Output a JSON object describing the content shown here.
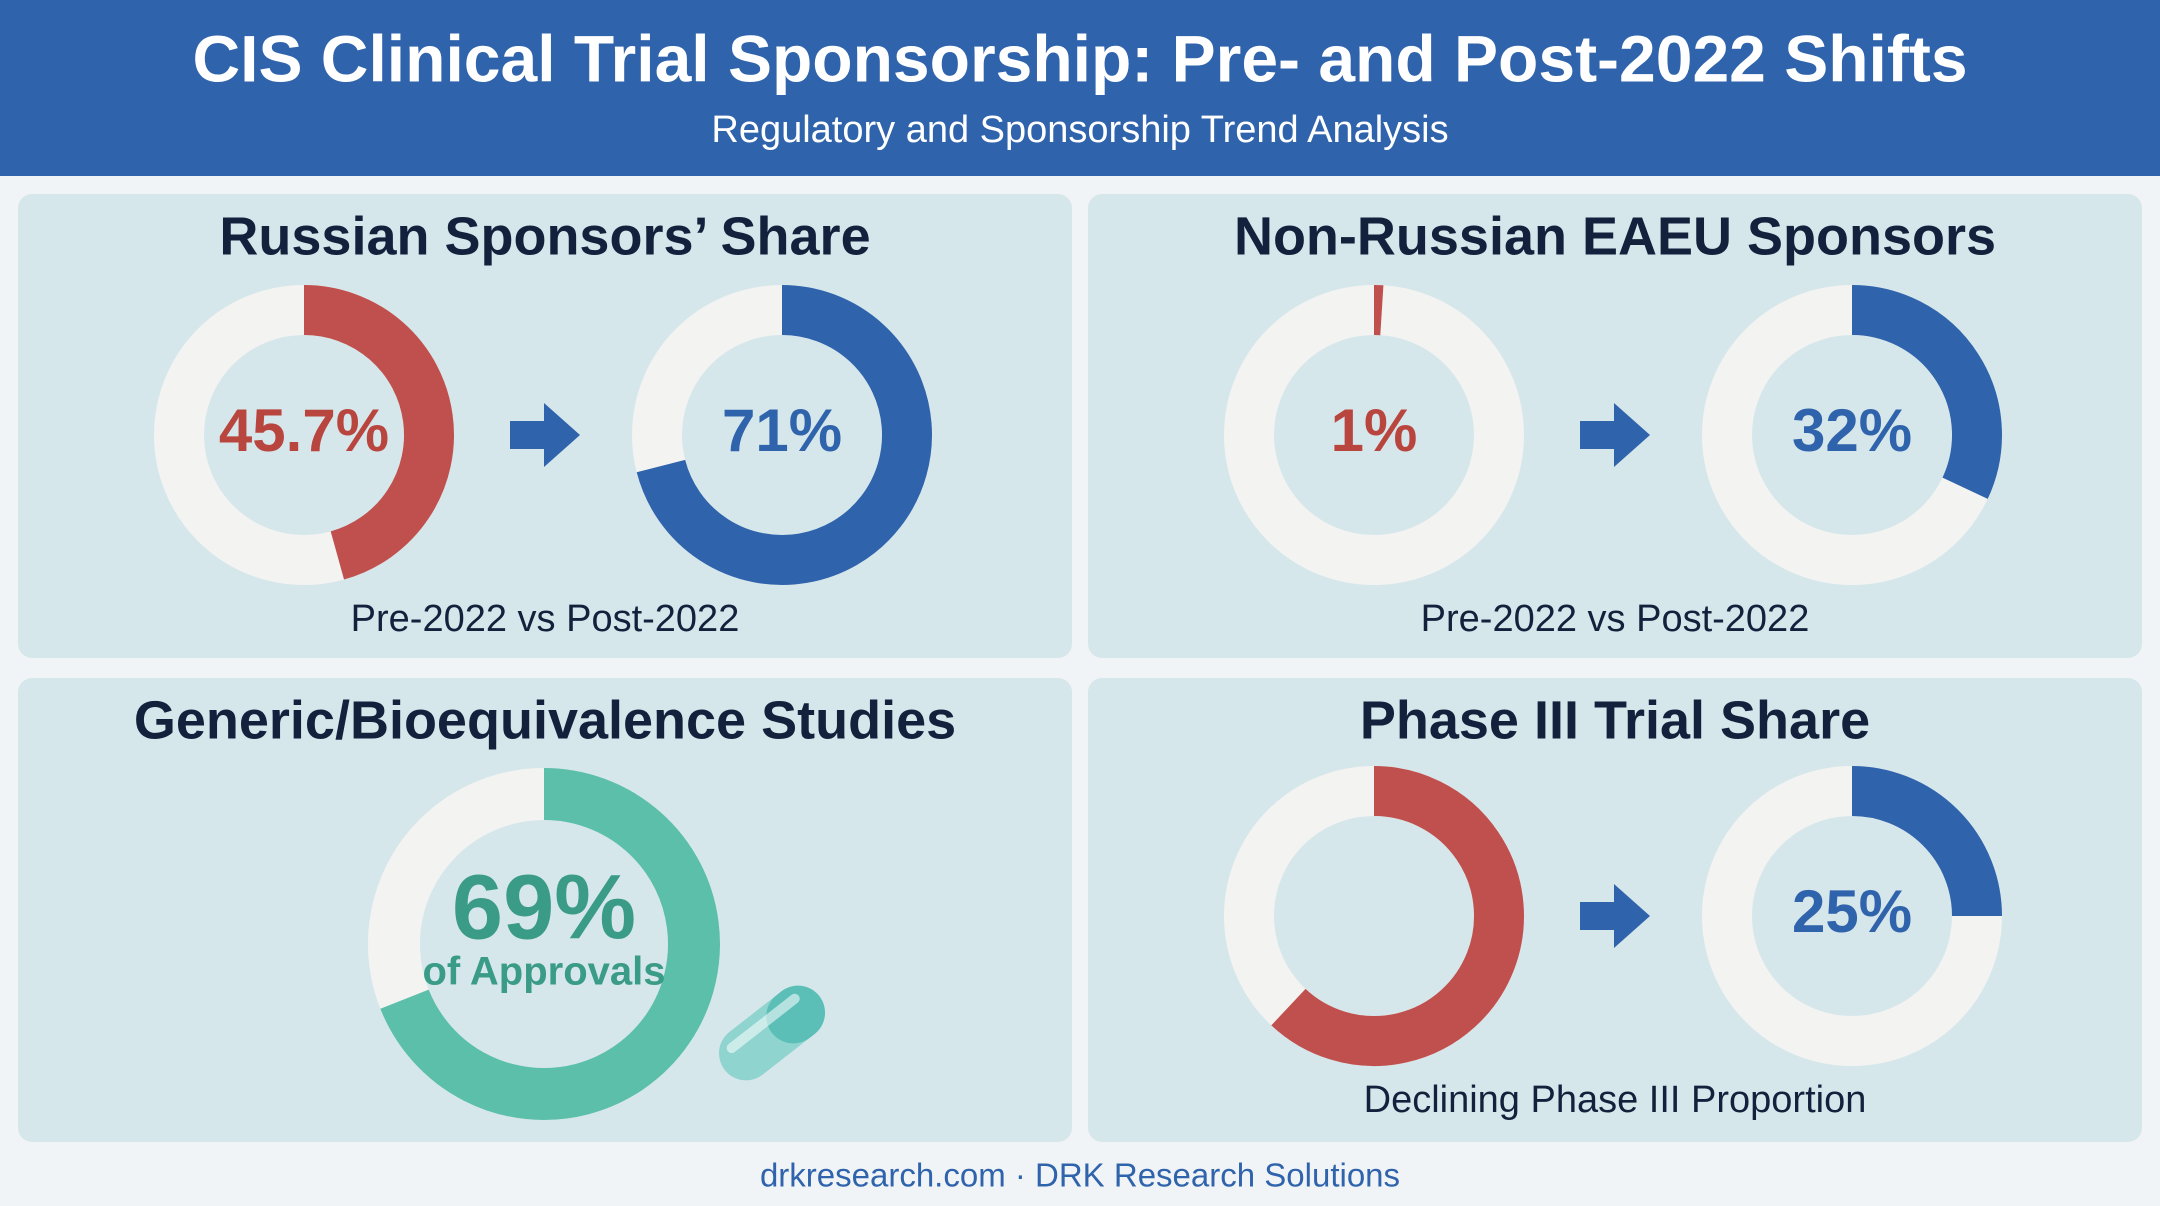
{
  "header": {
    "title": "CIS Clinical Trial Sponsorship: Pre- and Post-2022 Shifts",
    "subtitle": "Regulatory and Sponsorship Trend Analysis"
  },
  "chart_data": [
    {
      "type": "donut",
      "title": "Russian Sponsors’ Share",
      "caption": "Pre-2022 vs Post-2022",
      "values": [
        45.7,
        71
      ],
      "value_labels": [
        "45.7%",
        "71%"
      ],
      "colors": [
        "#c0504d",
        "#2f63ac"
      ]
    },
    {
      "type": "donut",
      "title": "Non-Russian EAEU Sponsors",
      "caption": "Pre-2022 vs Post-2022",
      "values": [
        1,
        32
      ],
      "value_labels": [
        "1%",
        "32%"
      ],
      "colors": [
        "#c0504d",
        "#2f63ac"
      ]
    },
    {
      "type": "donut",
      "title": "Generic/Bioequivalence Studies",
      "center_note": "of Approvals",
      "values": [
        69
      ],
      "value_labels": [
        "69%"
      ],
      "colors": [
        "#5bbfaa"
      ]
    },
    {
      "type": "donut",
      "title": "Phase III Trial Share",
      "caption": "Declining Phase III Proportion",
      "values": [
        62,
        25
      ],
      "value_labels": [
        null,
        "25%"
      ],
      "colors": [
        "#c0504d",
        "#2f63ac"
      ]
    }
  ],
  "footer": "drkresearch.com · DRK Research Solutions"
}
